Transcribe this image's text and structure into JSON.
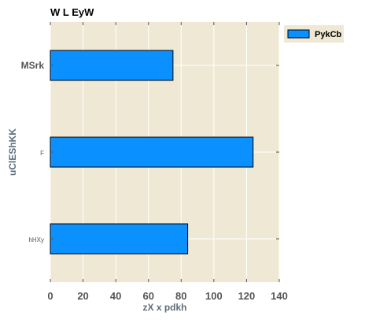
{
  "chart_data": {
    "type": "bar",
    "orientation": "horizontal",
    "title": "W L EyW",
    "xlabel": "zX x pdkh",
    "ylabel": "uClEShKK",
    "categories": [
      "MSrk",
      "F",
      "hHXy"
    ],
    "series": [
      {
        "name": "PykCb",
        "values": [
          75,
          124,
          84
        ],
        "color": "#0b91ff"
      }
    ],
    "xlim": [
      0,
      140
    ],
    "xticks": [
      0,
      20,
      40,
      60,
      80,
      100,
      120,
      140
    ],
    "grid": true,
    "legend": "top-right-outside",
    "plot_background": "#efe8d5"
  }
}
